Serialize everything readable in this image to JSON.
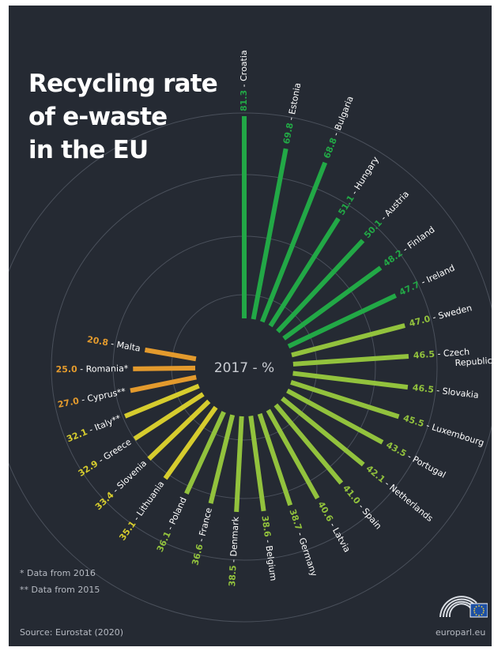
{
  "title": [
    "Recycling rate",
    "of e-waste",
    "in the EU"
  ],
  "center_label": "2017 - %",
  "notes": [
    "* Data from 2016",
    "** Data from 2015"
  ],
  "source": "Source: Eurostat (2020)",
  "site": "europarl.eu",
  "colors": {
    "background": "#252a33",
    "ring": "#4a505b",
    "dark_green": "#22a846",
    "light_green": "#92c23d",
    "yellow": "#d6cc2e",
    "orange": "#e39a2d",
    "label_white": "#ffffff"
  },
  "chart_data": {
    "type": "radial-bar",
    "title": "Recycling rate of e-waste in the EU",
    "unit": "%",
    "year": "2017",
    "items": [
      {
        "country": "Croatia",
        "label": "Croatia",
        "value": 81.3,
        "value_text": "81.3"
      },
      {
        "country": "Estonia",
        "label": "Estonia",
        "value": 69.8,
        "value_text": "69.8"
      },
      {
        "country": "Bulgaria",
        "label": "Bulgaria",
        "value": 68.8,
        "value_text": "68.8"
      },
      {
        "country": "Hungary",
        "label": "Hungary",
        "value": 51.1,
        "value_text": "51.1"
      },
      {
        "country": "Austria",
        "label": "Austria",
        "value": 50.1,
        "value_text": "50.1"
      },
      {
        "country": "Finland",
        "label": "Finland",
        "value": 48.2,
        "value_text": "48.2"
      },
      {
        "country": "Ireland",
        "label": "Ireland",
        "value": 47.7,
        "value_text": "47.7"
      },
      {
        "country": "Sweden",
        "label": "Sweden",
        "value": 47.0,
        "value_text": "47.0"
      },
      {
        "country": "Czech Republic",
        "label": "Czech",
        "label2": "Republic",
        "value": 46.5,
        "value_text": "46.5"
      },
      {
        "country": "Slovakia",
        "label": "Slovakia",
        "value": 46.5,
        "value_text": "46.5"
      },
      {
        "country": "Luxembourg",
        "label": "Luxembourg",
        "value": 45.5,
        "value_text": "45.5"
      },
      {
        "country": "Portugal",
        "label": "Portugal",
        "value": 43.5,
        "value_text": "43.5"
      },
      {
        "country": "Netherlands",
        "label": "Netherlands",
        "value": 42.1,
        "value_text": "42.1"
      },
      {
        "country": "Spain",
        "label": "Spain",
        "value": 41.0,
        "value_text": "41.0"
      },
      {
        "country": "Latvia",
        "label": "Latvia",
        "value": 40.6,
        "value_text": "40.6"
      },
      {
        "country": "Germany",
        "label": "Germany",
        "value": 38.7,
        "value_text": "38.7"
      },
      {
        "country": "Belgium",
        "label": "Belgium",
        "value": 38.6,
        "value_text": "38.6"
      },
      {
        "country": "Denmark",
        "label": "Denmark",
        "value": 38.5,
        "value_text": "38.5"
      },
      {
        "country": "France",
        "label": "France",
        "value": 36.6,
        "value_text": "36.6"
      },
      {
        "country": "Poland",
        "label": "Poland",
        "value": 36.1,
        "value_text": "36.1"
      },
      {
        "country": "Lithuania",
        "label": "Lithuania",
        "value": 35.1,
        "value_text": "35.1"
      },
      {
        "country": "Slovenia",
        "label": "Slovenia",
        "value": 33.4,
        "value_text": "33.4"
      },
      {
        "country": "Greece",
        "label": "Greece",
        "value": 32.9,
        "value_text": "32.9"
      },
      {
        "country": "Italy",
        "label": "Italy**",
        "value": 32.1,
        "value_text": "32.1"
      },
      {
        "country": "Cyprus",
        "label": "Cyprus**",
        "value": 27.0,
        "value_text": "27.0"
      },
      {
        "country": "Romania",
        "label": "Romania*",
        "value": 25.0,
        "value_text": "25.0"
      },
      {
        "country": "Malta",
        "label": "Malta",
        "value": 20.8,
        "value_text": "20.8"
      }
    ]
  }
}
